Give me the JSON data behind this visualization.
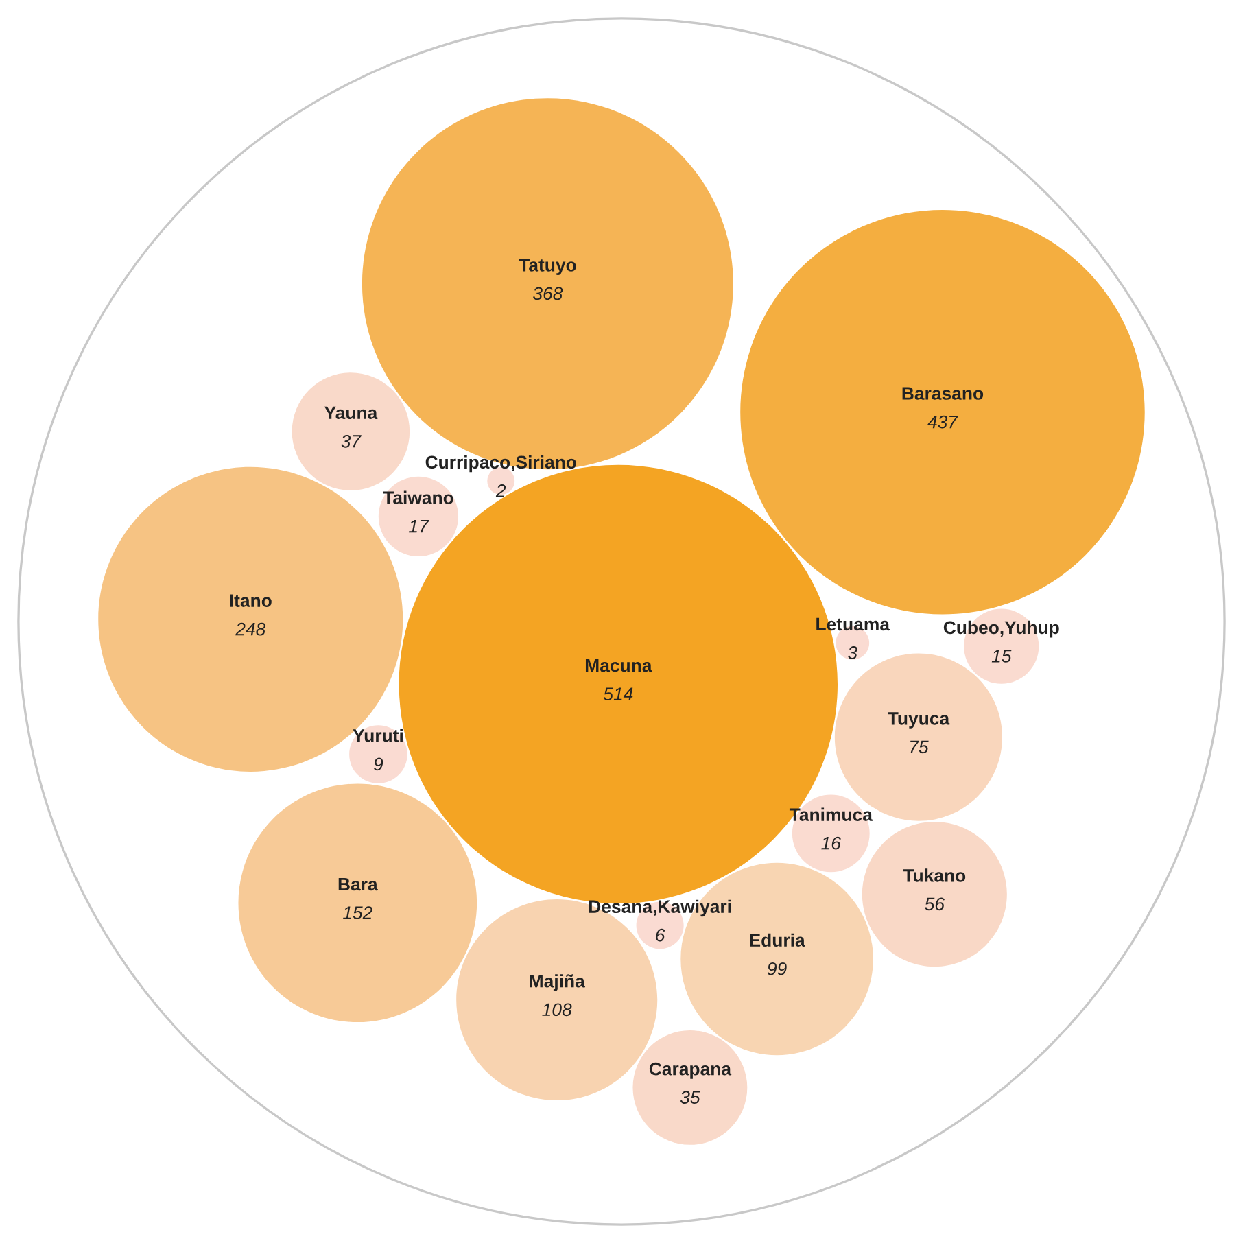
{
  "chart_data": {
    "type": "other",
    "data_labels": true,
    "categories": [
      "Macuna",
      "Barasano",
      "Tatuyo",
      "Itano",
      "Bara",
      "Majiña",
      "Eduria",
      "Tuyuca",
      "Tukano",
      "Yauna",
      "Carapana",
      "Taiwano",
      "Tanimuca",
      "Cubeo,Yuhup",
      "Yuruti",
      "Desana,Kawiyari",
      "Letuama",
      "Curripaco,Siriano"
    ],
    "values": [
      514,
      437,
      368,
      248,
      152,
      108,
      99,
      75,
      56,
      37,
      35,
      17,
      16,
      15,
      9,
      6,
      3,
      2
    ],
    "colors": [
      "#f4a423",
      "#f4ae40",
      "#f5b455",
      "#f6c383",
      "#f7ca97",
      "#f8d3b0",
      "#f8d5b2",
      "#f9d6bc",
      "#f9d8c6",
      "#f9d9c9",
      "#f9d9c9",
      "#fadbd0",
      "#fadbd0",
      "#fadbd0",
      "#fadbd2",
      "#fadbd2",
      "#fadbd2",
      "#fadbd2"
    ]
  }
}
